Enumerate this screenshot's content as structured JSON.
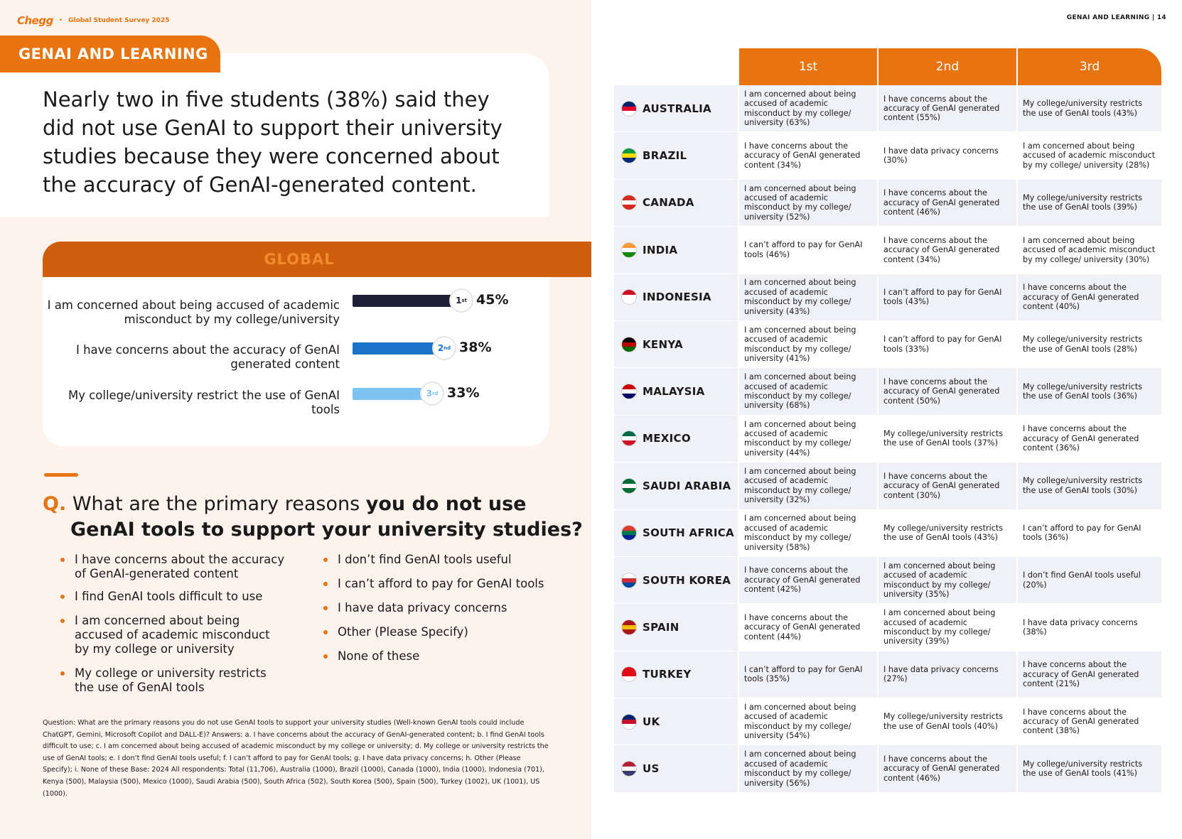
{
  "header": {
    "brand": "Chegg",
    "separator": "•",
    "survey": "Global Student Survey 2025",
    "section": "GENAI AND LEARNING",
    "right_header": "GENAI AND LEARNING",
    "page_number": "| 14"
  },
  "headline": "Nearly two in five students (38%) said they did not use GenAI to support their university studies because they were concerned about the accuracy of GenAI-generated content.",
  "global": {
    "title": "GLOBAL",
    "items": [
      {
        "label": "I am concerned about being accused of academic misconduct by my college/university",
        "rank": "1",
        "rank_suffix": "st",
        "pct_text": "45%"
      },
      {
        "label": "I have concerns about the accuracy of GenAI generated content",
        "rank": "2",
        "rank_suffix": "nd",
        "pct_text": "38%"
      },
      {
        "label": "My college/university restrict the use of GenAI tools",
        "rank": "3",
        "rank_suffix": "rd",
        "pct_text": "33%"
      }
    ]
  },
  "chart_data": {
    "type": "bar",
    "title": "GLOBAL",
    "categories": [
      "I am concerned about being accused of academic misconduct by my college/university",
      "I have concerns about the accuracy of GenAI generated content",
      "My college/university restrict the use of GenAI tools"
    ],
    "values": [
      45,
      38,
      33
    ],
    "colors": [
      "#1f1f33",
      "#1a72c9",
      "#7cc3f2"
    ],
    "ylim": [
      0,
      100
    ]
  },
  "question": {
    "mark": "Q.",
    "lead": "What are the primary reasons",
    "bold1": "you do not use",
    "bold2": "GenAI tools to support your university studies?"
  },
  "answers_left": [
    "I have concerns about the accuracy of GenAI-generated content",
    "I find GenAI tools difficult to use",
    "I am concerned about being accused of academic misconduct by my college or university",
    "My college or university restricts the use of GenAI tools"
  ],
  "answers_right": [
    "I don’t find GenAI tools useful",
    "I can’t afford to pay for GenAI tools",
    "I have data privacy concerns",
    "Other (Please Specify)",
    "None of these"
  ],
  "footnote": "Question: What are the primary reasons you do not use GenAI tools to support your university studies (Well-known GenAI tools could include ChatGPT, Gemini, Microsoft Copilot and DALL-E)? Answers: a. I have concerns about the accuracy of GenAI-generated content; b. I find GenAI tools difficult to use; c. I am concerned about being accused of academic misconduct by my college or university; d. My college or university restricts the use of GenAI tools; e. I don’t find GenAI tools useful; f. I can’t afford to pay for GenAI tools; g. I have data privacy concerns; h. Other (Please Specify); i. None of these Base: 2024 All respondents: Total (11,706), Australia (1000), Brazil (1000), Canada (1000), India (1000), Indonesia (701), Kenya (500), Malaysia (500), Mexico (1000), Saudi Arabia (500), South Africa (502), South Korea (500), Spain (500), Turkey (1002), UK (1001), US (1000).",
  "table": {
    "headers": [
      "1st",
      "2nd",
      "3rd"
    ],
    "rows": [
      {
        "country": "AUSTRALIA",
        "flag": [
          "#012169",
          "#e4002b",
          "#ffffff"
        ],
        "c1": "I am concerned about being accused of academic misconduct by my college/ university (63%)",
        "c2": "I have concerns about the accuracy of GenAI generated content (55%)",
        "c3": "My college/university restricts the use of GenAI tools (43%)"
      },
      {
        "country": "BRAZIL",
        "flag": [
          "#009c3b",
          "#ffdf00",
          "#002776"
        ],
        "c1": "I have concerns about the accuracy of GenAI generated content (34%)",
        "c2": "I have data privacy concerns (30%)",
        "c3": "I am concerned about being accused of academic misconduct by my college/ university (28%)"
      },
      {
        "country": "CANADA",
        "flag": [
          "#d52b1e",
          "#ffffff",
          "#d52b1e"
        ],
        "c1": "I am concerned about being accused of academic misconduct by my college/ university (52%)",
        "c2": "I have concerns about the accuracy of GenAI generated content (46%)",
        "c3": "My college/university restricts the use of GenAI tools (39%)"
      },
      {
        "country": "INDIA",
        "flag": [
          "#ff9933",
          "#ffffff",
          "#138808"
        ],
        "c1": "I can’t afford to pay for GenAI tools (46%)",
        "c2": "I have concerns about the accuracy of GenAI generated content (34%)",
        "c3": "I am concerned about being accused of academic misconduct by my college/ university (30%)"
      },
      {
        "country": "INDONESIA",
        "flag": [
          "#ce1126",
          "#ffffff",
          "#ffffff"
        ],
        "c1": "I am concerned about being accused of academic misconduct by my college/ university (43%)",
        "c2": "I can’t afford to pay for GenAI tools (43%)",
        "c3": "I have concerns about the accuracy of GenAI generated content (40%)"
      },
      {
        "country": "KENYA",
        "flag": [
          "#000000",
          "#bb0000",
          "#006600"
        ],
        "c1": "I am concerned about being accused of academic misconduct by my college/ university (41%)",
        "c2": "I can’t afford to pay for GenAI tools (33%)",
        "c3": "My college/university restricts the use of GenAI tools (28%)"
      },
      {
        "country": "MALAYSIA",
        "flag": [
          "#cc0001",
          "#ffffff",
          "#010066"
        ],
        "c1": "I am concerned about being accused of academic misconduct by my college/ university (68%)",
        "c2": "I have concerns about the accuracy of GenAI generated content (50%)",
        "c3": "My college/university restricts the use of GenAI tools (36%)"
      },
      {
        "country": "MEXICO",
        "flag": [
          "#006847",
          "#ffffff",
          "#ce1126"
        ],
        "c1": "I am concerned about being accused of academic misconduct by my college/ university (44%)",
        "c2": "My college/university restricts the use of GenAI tools (37%)",
        "c3": "I have concerns about the accuracy of GenAI generated content (36%)"
      },
      {
        "country": "SAUDI ARABIA",
        "flag": [
          "#006c35",
          "#ffffff",
          "#006c35"
        ],
        "c1": "I am concerned about being accused of academic misconduct by my college/ university (32%)",
        "c2": "I have concerns about the accuracy of GenAI generated content (30%)",
        "c3": "My college/university restricts the use of GenAI tools (30%)"
      },
      {
        "country": "SOUTH AFRICA",
        "flag": [
          "#de3831",
          "#007a4d",
          "#002395"
        ],
        "c1": "I am concerned about being accused of academic misconduct by my college/ university (58%)",
        "c2": "My college/university restricts the use of GenAI tools (43%)",
        "c3": "I can’t afford to pay for GenAI tools (36%)"
      },
      {
        "country": "SOUTH KOREA",
        "flag": [
          "#ffffff",
          "#cd2e3a",
          "#0047a0"
        ],
        "c1": "I have concerns about the accuracy of GenAI generated content (42%)",
        "c2": "I am concerned about being accused of academic misconduct by my college/ university (35%)",
        "c3": "I don’t find GenAI tools useful (20%)"
      },
      {
        "country": "SPAIN",
        "flag": [
          "#aa151b",
          "#f1bf00",
          "#aa151b"
        ],
        "c1": "I have concerns about the accuracy of GenAI generated content (44%)",
        "c2": "I am concerned about being accused of academic misconduct by my college/ university (39%)",
        "c3": "I have data privacy concerns (38%)"
      },
      {
        "country": "TURKEY",
        "flag": [
          "#e30a17",
          "#e30a17",
          "#ffffff"
        ],
        "c1": "I can’t afford to pay for GenAI tools (35%)",
        "c2": "I have data privacy concerns (27%)",
        "c3": "I have concerns about the accuracy of GenAI generated content (21%)"
      },
      {
        "country": "UK",
        "flag": [
          "#012169",
          "#c8102e",
          "#ffffff"
        ],
        "c1": "I am concerned about being accused of academic misconduct by my college/ university (54%)",
        "c2": "My college/university restricts the use of GenAI tools (40%)",
        "c3": "I have concerns about the accuracy of GenAI generated content (38%)"
      },
      {
        "country": "US",
        "flag": [
          "#b22234",
          "#ffffff",
          "#3c3b6e"
        ],
        "c1": "I am concerned about being accused of academic misconduct by my college/ university (56%)",
        "c2": "I have concerns about the accuracy of GenAI generated content (46%)",
        "c3": "My college/university restricts the use of GenAI tools (41%)"
      }
    ]
  }
}
